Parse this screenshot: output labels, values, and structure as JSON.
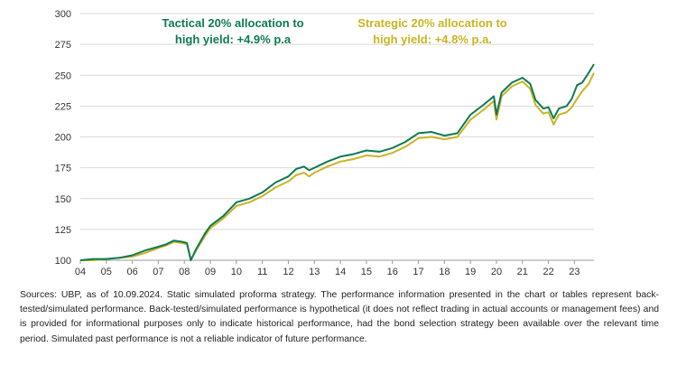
{
  "chart_data": {
    "type": "line",
    "ylim": [
      100,
      300
    ],
    "y_ticks": [
      100,
      125,
      150,
      175,
      200,
      225,
      250,
      275,
      300
    ],
    "x_range": [
      2004,
      2023.75
    ],
    "x_tick_labels": [
      "04",
      "05",
      "06",
      "07",
      "08",
      "09",
      "10",
      "11",
      "12",
      "13",
      "14",
      "15",
      "16",
      "17",
      "18",
      "19",
      "20",
      "21",
      "22",
      "23"
    ],
    "grid": "horizontal",
    "series": [
      {
        "name": "Tactical 20% allocation to high yield",
        "legend_line1": "Tactical 20% allocation to",
        "legend_line2": "high yield: +4.9% p.a",
        "color": "#0f7a52",
        "points": [
          [
            2004.0,
            100
          ],
          [
            2004.5,
            101
          ],
          [
            2005.0,
            101
          ],
          [
            2005.5,
            102
          ],
          [
            2006.0,
            104
          ],
          [
            2006.5,
            108
          ],
          [
            2007.0,
            111
          ],
          [
            2007.3,
            113
          ],
          [
            2007.6,
            116
          ],
          [
            2007.9,
            115
          ],
          [
            2008.1,
            114
          ],
          [
            2008.25,
            100
          ],
          [
            2008.45,
            109
          ],
          [
            2008.8,
            122
          ],
          [
            2009.0,
            128
          ],
          [
            2009.5,
            136
          ],
          [
            2010.0,
            147
          ],
          [
            2010.5,
            150
          ],
          [
            2011.0,
            155
          ],
          [
            2011.5,
            163
          ],
          [
            2012.0,
            168
          ],
          [
            2012.3,
            174
          ],
          [
            2012.6,
            176
          ],
          [
            2012.8,
            173
          ],
          [
            2013.0,
            175
          ],
          [
            2013.5,
            180
          ],
          [
            2014.0,
            184
          ],
          [
            2014.5,
            186
          ],
          [
            2015.0,
            189
          ],
          [
            2015.5,
            188
          ],
          [
            2016.0,
            191
          ],
          [
            2016.5,
            196
          ],
          [
            2017.0,
            203
          ],
          [
            2017.5,
            204
          ],
          [
            2018.0,
            201
          ],
          [
            2018.5,
            203
          ],
          [
            2019.0,
            218
          ],
          [
            2019.5,
            226
          ],
          [
            2019.9,
            233
          ],
          [
            2020.0,
            218
          ],
          [
            2020.2,
            236
          ],
          [
            2020.6,
            244
          ],
          [
            2021.0,
            248
          ],
          [
            2021.3,
            243
          ],
          [
            2021.5,
            230
          ],
          [
            2021.8,
            223
          ],
          [
            2022.0,
            224
          ],
          [
            2022.2,
            215
          ],
          [
            2022.4,
            223
          ],
          [
            2022.7,
            225
          ],
          [
            2022.9,
            231
          ],
          [
            2023.1,
            242
          ],
          [
            2023.3,
            244
          ],
          [
            2023.55,
            252
          ],
          [
            2023.75,
            259
          ]
        ]
      },
      {
        "name": "Strategic 20% allocation to high yield",
        "legend_line1": "Strategic 20% allocation to",
        "legend_line2": "high yield: +4.8% p.a.",
        "color": "#c9b424",
        "points": [
          [
            2004.0,
            100
          ],
          [
            2004.5,
            100
          ],
          [
            2005.0,
            101
          ],
          [
            2005.5,
            102
          ],
          [
            2006.0,
            103
          ],
          [
            2006.5,
            106
          ],
          [
            2007.0,
            110
          ],
          [
            2007.3,
            112
          ],
          [
            2007.6,
            115
          ],
          [
            2007.9,
            114
          ],
          [
            2008.1,
            113
          ],
          [
            2008.25,
            100
          ],
          [
            2008.45,
            108
          ],
          [
            2008.8,
            120
          ],
          [
            2009.0,
            126
          ],
          [
            2009.5,
            134
          ],
          [
            2010.0,
            144
          ],
          [
            2010.5,
            147
          ],
          [
            2011.0,
            152
          ],
          [
            2011.5,
            159
          ],
          [
            2012.0,
            164
          ],
          [
            2012.3,
            169
          ],
          [
            2012.6,
            171
          ],
          [
            2012.8,
            168
          ],
          [
            2013.0,
            171
          ],
          [
            2013.5,
            176
          ],
          [
            2014.0,
            180
          ],
          [
            2014.5,
            182
          ],
          [
            2015.0,
            185
          ],
          [
            2015.5,
            184
          ],
          [
            2016.0,
            187
          ],
          [
            2016.5,
            192
          ],
          [
            2017.0,
            199
          ],
          [
            2017.5,
            200
          ],
          [
            2018.0,
            198
          ],
          [
            2018.5,
            200
          ],
          [
            2019.0,
            214
          ],
          [
            2019.5,
            222
          ],
          [
            2019.9,
            229
          ],
          [
            2020.0,
            214
          ],
          [
            2020.2,
            233
          ],
          [
            2020.6,
            241
          ],
          [
            2021.0,
            245
          ],
          [
            2021.3,
            239
          ],
          [
            2021.5,
            226
          ],
          [
            2021.8,
            219
          ],
          [
            2022.0,
            220
          ],
          [
            2022.2,
            210
          ],
          [
            2022.4,
            218
          ],
          [
            2022.7,
            220
          ],
          [
            2022.9,
            224
          ],
          [
            2023.1,
            231
          ],
          [
            2023.3,
            237
          ],
          [
            2023.55,
            243
          ],
          [
            2023.75,
            252
          ]
        ]
      }
    ]
  },
  "footnote": "Sources: UBP,  as of 10.09.2024. Static simulated proforma strategy. The performance information presented in the chart or tables represent back-tested/simulated performance. Back-tested/simulated performance is hypothetical (it does not reflect trading in actual accounts or management fees) and is provided for informational purposes only to indicate historical performance, had the bond selection strategy been available over the relevant time period. Simulated past performance is not a reliable indicator of future performance."
}
